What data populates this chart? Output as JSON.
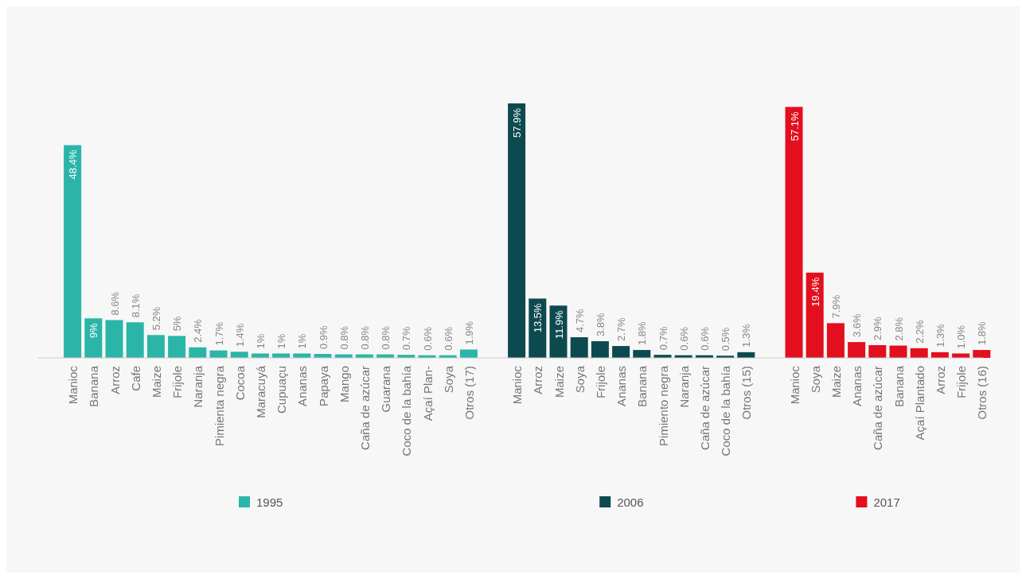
{
  "chart_data": [
    {
      "type": "bar",
      "categories": [
        "Manioc",
        "Banana",
        "Arroz",
        "Cafe",
        "Maize",
        "Frijole",
        "Naranja",
        "Pimienta negra",
        "Cocoa",
        "Maracuyá",
        "Cupuaçu",
        "Ananas",
        "Papaya",
        "Mango",
        "Caña de azúcar",
        "Guarana",
        "Coco de la bahía",
        "Açaí Plan-",
        "Soya",
        "Otros (17)"
      ],
      "legend": "bottom",
      "series": [
        {
          "name": "1995",
          "color": "#2bb5a8",
          "values": [
            48.4,
            9,
            8.6,
            8.1,
            5.2,
            5,
            2.4,
            1.7,
            1.4,
            1,
            1,
            1,
            0.9,
            0.8,
            0.8,
            0.8,
            0.7,
            0.6,
            0.6,
            1.9
          ],
          "value_labels": [
            "48.4%",
            "9%",
            "8.6%",
            "8.1%",
            "5.2%",
            "5%",
            "2.4%",
            "1.7%",
            "1.4%",
            "1%",
            "1%",
            "1%",
            "0.9%",
            "0.8%",
            "0.8%",
            "0.8%",
            "0.7%",
            "0.6%",
            "0.6%",
            "1.9%"
          ]
        }
      ]
    },
    {
      "type": "bar",
      "categories": [
        "Manioc",
        "Arroz",
        "Maize",
        "Soya",
        "Frijole",
        "Ananas",
        "Banana",
        "Pimiento negra",
        "Naranja",
        "Caña de azúcar",
        "Coco de la bahía",
        "Otros (15)"
      ],
      "legend": "bottom",
      "series": [
        {
          "name": "2006",
          "color": "#0d4a4f",
          "values": [
            57.9,
            13.5,
            11.9,
            4.7,
            3.8,
            2.7,
            1.8,
            0.7,
            0.6,
            0.6,
            0.5,
            1.3
          ],
          "value_labels": [
            "57.9%",
            "13.5%",
            "11.9%",
            "4.7%",
            "3.8%",
            "2.7%",
            "1.8%",
            "0.7%",
            "0.6%",
            "0.6%",
            "0.5%",
            "1.3%"
          ]
        }
      ]
    },
    {
      "type": "bar",
      "categories": [
        "Manioc",
        "Soya",
        "Maize",
        "Ananas",
        "Caña de azúcar",
        "Banana",
        "Açaí Plantado",
        "Arroz",
        "Frijole",
        "Otros (16)"
      ],
      "legend": "bottom",
      "series": [
        {
          "name": "2017",
          "color": "#e30f1e",
          "values": [
            57.1,
            19.4,
            7.9,
            3.6,
            2.9,
            2.8,
            2.2,
            1.3,
            1.0,
            1.8
          ],
          "value_labels": [
            "57.1%",
            "19.4%",
            "7.9%",
            "3.6%",
            "2.9%",
            "2.8%",
            "2.2%",
            "1.3%",
            "1.0%",
            "1.8%"
          ]
        }
      ]
    }
  ]
}
